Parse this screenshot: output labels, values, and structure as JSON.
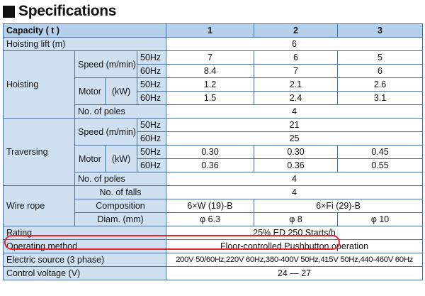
{
  "heading": "Specifications",
  "header": {
    "label": "Capacity ( t )",
    "cols": [
      "1",
      "2",
      "3"
    ]
  },
  "hoisting_lift": {
    "label": "Hoisting lift (m)",
    "value": "6"
  },
  "hoisting": {
    "label": "Hoisting",
    "speed": {
      "label": "Speed (m/min)",
      "hz50": "50Hz",
      "hz60": "60Hz",
      "v50": [
        "7",
        "6",
        "5"
      ],
      "v60": [
        "8.4",
        "7",
        "6"
      ]
    },
    "motor": {
      "label": "Motor",
      "unit": "(kW)",
      "hz50": "50Hz",
      "hz60": "60Hz",
      "v50": [
        "1.2",
        "2.1",
        "2.6"
      ],
      "v60": [
        "1.5",
        "2.4",
        "3.1"
      ]
    },
    "poles": {
      "label": "No. of poles",
      "value": "4"
    }
  },
  "traversing": {
    "label": "Traversing",
    "speed": {
      "label": "Speed (m/min)",
      "hz50": "50Hz",
      "hz60": "60Hz",
      "v50": "21",
      "v60": "25"
    },
    "motor": {
      "label": "Motor",
      "unit": "(kW)",
      "hz50": "50Hz",
      "hz60": "60Hz",
      "v50": [
        "0.30",
        "0.30",
        "0.45"
      ],
      "v60": [
        "0.36",
        "0.36",
        "0.55"
      ]
    },
    "poles": {
      "label": "No. of poles",
      "value": "4"
    }
  },
  "wire_rope": {
    "label": "Wire rope",
    "falls": {
      "label": "No. of falls",
      "value": "4"
    },
    "composition": {
      "label": "Composition",
      "v1": "6×W (19)-B",
      "v23": "6×Fi (29)-B"
    },
    "diam": {
      "label": "Diam. (mm)",
      "values": [
        "φ 6.3",
        "φ 8",
        "φ 10"
      ]
    }
  },
  "rating": {
    "label": "Rating",
    "value": "25% ED 250 Starts/h"
  },
  "operating": {
    "label": "Operating method",
    "value": "Floor-controlled Pushbutton operation"
  },
  "electric": {
    "label": "Electric source (3 phase)",
    "value": "200V 50/60Hz,220V 60Hz,380-400V 50Hz,415V 50Hz,440-460V 60Hz"
  },
  "control": {
    "label": "Control voltage (V)",
    "value": "24 — 27"
  },
  "highlight_color": "#e4242c"
}
